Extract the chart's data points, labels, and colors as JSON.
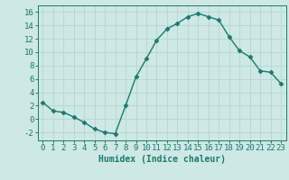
{
  "x": [
    0,
    1,
    2,
    3,
    4,
    5,
    6,
    7,
    8,
    9,
    10,
    11,
    12,
    13,
    14,
    15,
    16,
    17,
    18,
    19,
    20,
    21,
    22,
    23
  ],
  "y": [
    2.5,
    1.2,
    1.0,
    0.3,
    -0.5,
    -1.5,
    -2.0,
    -2.2,
    2.0,
    6.3,
    9.0,
    11.8,
    13.5,
    14.3,
    15.3,
    15.8,
    15.3,
    14.8,
    12.3,
    10.2,
    9.3,
    7.2,
    7.0,
    5.3
  ],
  "line_color": "#1a7a6a",
  "marker": "D",
  "marker_size": 2.5,
  "bg_color": "#cde8e5",
  "grid_color": "#b8d8d4",
  "xlabel": "Humidex (Indice chaleur)",
  "xlim": [
    -0.5,
    23.5
  ],
  "ylim": [
    -3.2,
    17
  ],
  "yticks": [
    -2,
    0,
    2,
    4,
    6,
    8,
    10,
    12,
    14,
    16
  ],
  "xticks": [
    0,
    1,
    2,
    3,
    4,
    5,
    6,
    7,
    8,
    9,
    10,
    11,
    12,
    13,
    14,
    15,
    16,
    17,
    18,
    19,
    20,
    21,
    22,
    23
  ],
  "label_fontsize": 7,
  "tick_fontsize": 6.5
}
